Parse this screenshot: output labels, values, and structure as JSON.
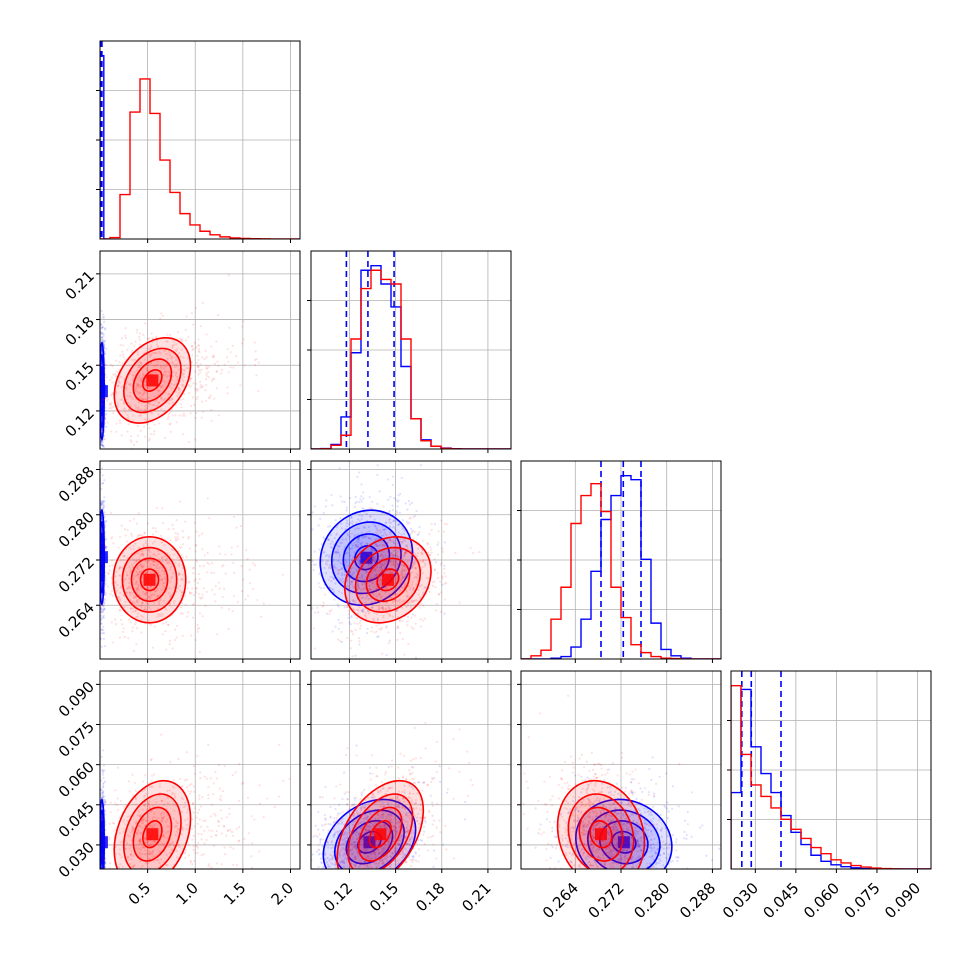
{
  "chart_data": {
    "type": "corner",
    "colors": {
      "blue": "#0000ff",
      "red": "#ff0000",
      "grid": "#b0b0b0"
    },
    "variables": [
      {
        "id": "p0",
        "xlim": [
          0.0,
          2.1
        ],
        "ticks": [
          0.5,
          1.0,
          1.5,
          2.0
        ],
        "tick_labels": [
          "0.5",
          "1.0",
          "1.5",
          "2.0"
        ]
      },
      {
        "id": "p1",
        "xlim": [
          0.095,
          0.225
        ],
        "ticks": [
          0.12,
          0.15,
          0.18,
          0.21
        ],
        "tick_labels": [
          "0.12",
          "0.15",
          "0.18",
          "0.21"
        ]
      },
      {
        "id": "p2",
        "xlim": [
          0.2545,
          0.2895
        ],
        "ticks": [
          0.264,
          0.272,
          0.28,
          0.288
        ],
        "tick_labels": [
          "0.264",
          "0.272",
          "0.280",
          "0.288"
        ]
      },
      {
        "id": "p3",
        "xlim": [
          0.021,
          0.095
        ],
        "ticks": [
          0.03,
          0.045,
          0.06,
          0.075,
          0.09
        ],
        "tick_labels": [
          "0.030",
          "0.045",
          "0.060",
          "0.075",
          "0.090"
        ]
      }
    ],
    "series": [
      {
        "color": "blue",
        "hist": [
          {
            "var": 0,
            "bin_edges": [
              0.0,
              0.04,
              0.08
            ],
            "counts": [
              2600,
              0
            ]
          },
          {
            "var": 1,
            "bin_edges": [
              0.095,
              0.1015,
              0.108,
              0.1145,
              0.121,
              0.1275,
              0.134,
              0.1405,
              0.147,
              0.1535,
              0.16,
              0.1665,
              0.173,
              0.1795,
              0.186,
              0.1925,
              0.199,
              0.2055,
              0.212,
              0.2185,
              0.225
            ],
            "counts": [
              0,
              5,
              50,
              350,
              1050,
              1950,
              2000,
              1800,
              1550,
              900,
              330,
              100,
              30,
              10,
              3,
              1,
              0,
              0,
              0,
              0
            ]
          },
          {
            "var": 2,
            "bin_edges": [
              0.2545,
              0.25625,
              0.258,
              0.25975,
              0.2615,
              0.26325,
              0.265,
              0.26675,
              0.2685,
              0.27025,
              0.272,
              0.27375,
              0.2755,
              0.27725,
              0.279,
              0.28075,
              0.2825,
              0.28425,
              0.286,
              0.28775,
              0.2895
            ],
            "counts": [
              0,
              0,
              0,
              10,
              30,
              150,
              500,
              1100,
              1750,
              2050,
              2300,
              2250,
              1250,
              450,
              120,
              40,
              10,
              0,
              0,
              0
            ]
          },
          {
            "var": 3,
            "bin_edges": [
              0.021,
              0.0247,
              0.0284,
              0.0321,
              0.0358,
              0.0395,
              0.0432,
              0.0469,
              0.0506,
              0.0543,
              0.058,
              0.0617,
              0.0654,
              0.0691,
              0.0728,
              0.0765,
              0.0802,
              0.0839,
              0.0876,
              0.0913,
              0.095
            ],
            "counts": [
              1000,
              2350,
              1600,
              1250,
              1000,
              700,
              480,
              320,
              180,
              100,
              55,
              30,
              15,
              5,
              2,
              1,
              0,
              0,
              0,
              0
            ]
          }
        ],
        "quantiles": [
          [
            0.01,
            0.015,
            0.02
          ],
          [
            0.118,
            0.132,
            0.149
          ],
          [
            0.2685,
            0.2724,
            0.2755
          ],
          [
            0.025,
            0.0285,
            0.0395
          ]
        ],
        "pairs": [
          {
            "x": 0,
            "y": 1,
            "mean": [
              0.02,
              0.133
            ],
            "sd": [
              0.012,
              0.016
            ],
            "rho": 0.0
          },
          {
            "x": 0,
            "y": 2,
            "mean": [
              0.02,
              0.2725
            ],
            "sd": [
              0.012,
              0.0042
            ],
            "rho": 0.0
          },
          {
            "x": 0,
            "y": 3,
            "mean": [
              0.02,
              0.031
            ],
            "sd": [
              0.012,
              0.008
            ],
            "rho": 0.0
          },
          {
            "x": 1,
            "y": 2,
            "mean": [
              0.131,
              0.2724
            ],
            "sd": [
              0.015,
              0.0042
            ],
            "rho": 0.1
          },
          {
            "x": 1,
            "y": 3,
            "mean": [
              0.133,
              0.031
            ],
            "sd": [
              0.015,
              0.008
            ],
            "rho": 0.3
          },
          {
            "x": 2,
            "y": 3,
            "mean": [
              0.2725,
              0.031
            ],
            "sd": [
              0.0042,
              0.008
            ],
            "rho": -0.1
          }
        ]
      },
      {
        "color": "red",
        "hist": [
          {
            "var": 0,
            "bin_edges": [
              0.0,
              0.105,
              0.21,
              0.315,
              0.42,
              0.525,
              0.63,
              0.735,
              0.84,
              0.945,
              1.05,
              1.155,
              1.26,
              1.365,
              1.47,
              1.575,
              1.68,
              1.785,
              1.89,
              1.995,
              2.1
            ],
            "counts": [
              0,
              20,
              630,
              1800,
              2270,
              1780,
              1120,
              660,
              360,
              200,
              110,
              60,
              30,
              15,
              8,
              4,
              2,
              1,
              0,
              0
            ]
          },
          {
            "var": 1,
            "bin_edges": [
              0.095,
              0.1015,
              0.108,
              0.1145,
              0.121,
              0.1275,
              0.134,
              0.1405,
              0.147,
              0.1535,
              0.16,
              0.1665,
              0.173,
              0.1795,
              0.186,
              0.1925,
              0.199,
              0.2055,
              0.212,
              0.2185,
              0.225
            ],
            "counts": [
              0,
              3,
              40,
              150,
              1200,
              1750,
              1950,
              1850,
              1800,
              1200,
              330,
              90,
              30,
              8,
              2,
              0,
              0,
              0,
              0,
              0
            ]
          },
          {
            "var": 2,
            "bin_edges": [
              0.2545,
              0.25625,
              0.258,
              0.25975,
              0.2615,
              0.26325,
              0.265,
              0.26675,
              0.2685,
              0.27025,
              0.272,
              0.27375,
              0.2755,
              0.27725,
              0.279,
              0.28075,
              0.2825,
              0.28425,
              0.286,
              0.28775,
              0.2895
            ],
            "counts": [
              0,
              40,
              110,
              500,
              900,
              1700,
              2050,
              2200,
              1850,
              900,
              520,
              180,
              80,
              30,
              10,
              5,
              0,
              0,
              0,
              0
            ]
          },
          {
            "var": 3,
            "bin_edges": [
              0.021,
              0.0247,
              0.0284,
              0.0321,
              0.0358,
              0.0395,
              0.0432,
              0.0469,
              0.0506,
              0.0543,
              0.058,
              0.0617,
              0.0654,
              0.0691,
              0.0728,
              0.0765,
              0.0802,
              0.0839,
              0.0876,
              0.0913,
              0.095
            ],
            "counts": [
              2400,
              1500,
              1100,
              950,
              800,
              650,
              520,
              400,
              280,
              200,
              120,
              80,
              45,
              25,
              12,
              6,
              2,
              0,
              0,
              0
            ]
          }
        ],
        "pairs": [
          {
            "x": 0,
            "y": 1,
            "mean": [
              0.55,
              0.14
            ],
            "sd": [
              0.2,
              0.014
            ],
            "rho": 0.35
          },
          {
            "x": 0,
            "y": 2,
            "mean": [
              0.52,
              0.2685
            ],
            "sd": [
              0.19,
              0.0038
            ],
            "rho": 0.0
          },
          {
            "x": 0,
            "y": 3,
            "mean": [
              0.55,
              0.034
            ],
            "sd": [
              0.2,
              0.01
            ],
            "rho": 0.3
          },
          {
            "x": 1,
            "y": 2,
            "mean": [
              0.145,
              0.2685
            ],
            "sd": [
              0.014,
              0.0038
            ],
            "rho": 0.2
          },
          {
            "x": 1,
            "y": 3,
            "mean": [
              0.14,
              0.034
            ],
            "sd": [
              0.014,
              0.01
            ],
            "rho": 0.45
          },
          {
            "x": 2,
            "y": 3,
            "mean": [
              0.2685,
              0.034
            ],
            "sd": [
              0.0038,
              0.01
            ],
            "rho": -0.15
          }
        ]
      }
    ],
    "contour_levels_sigma": [
      0.5,
      1.0,
      1.5,
      2.0
    ],
    "grid": true,
    "legend": "none"
  }
}
